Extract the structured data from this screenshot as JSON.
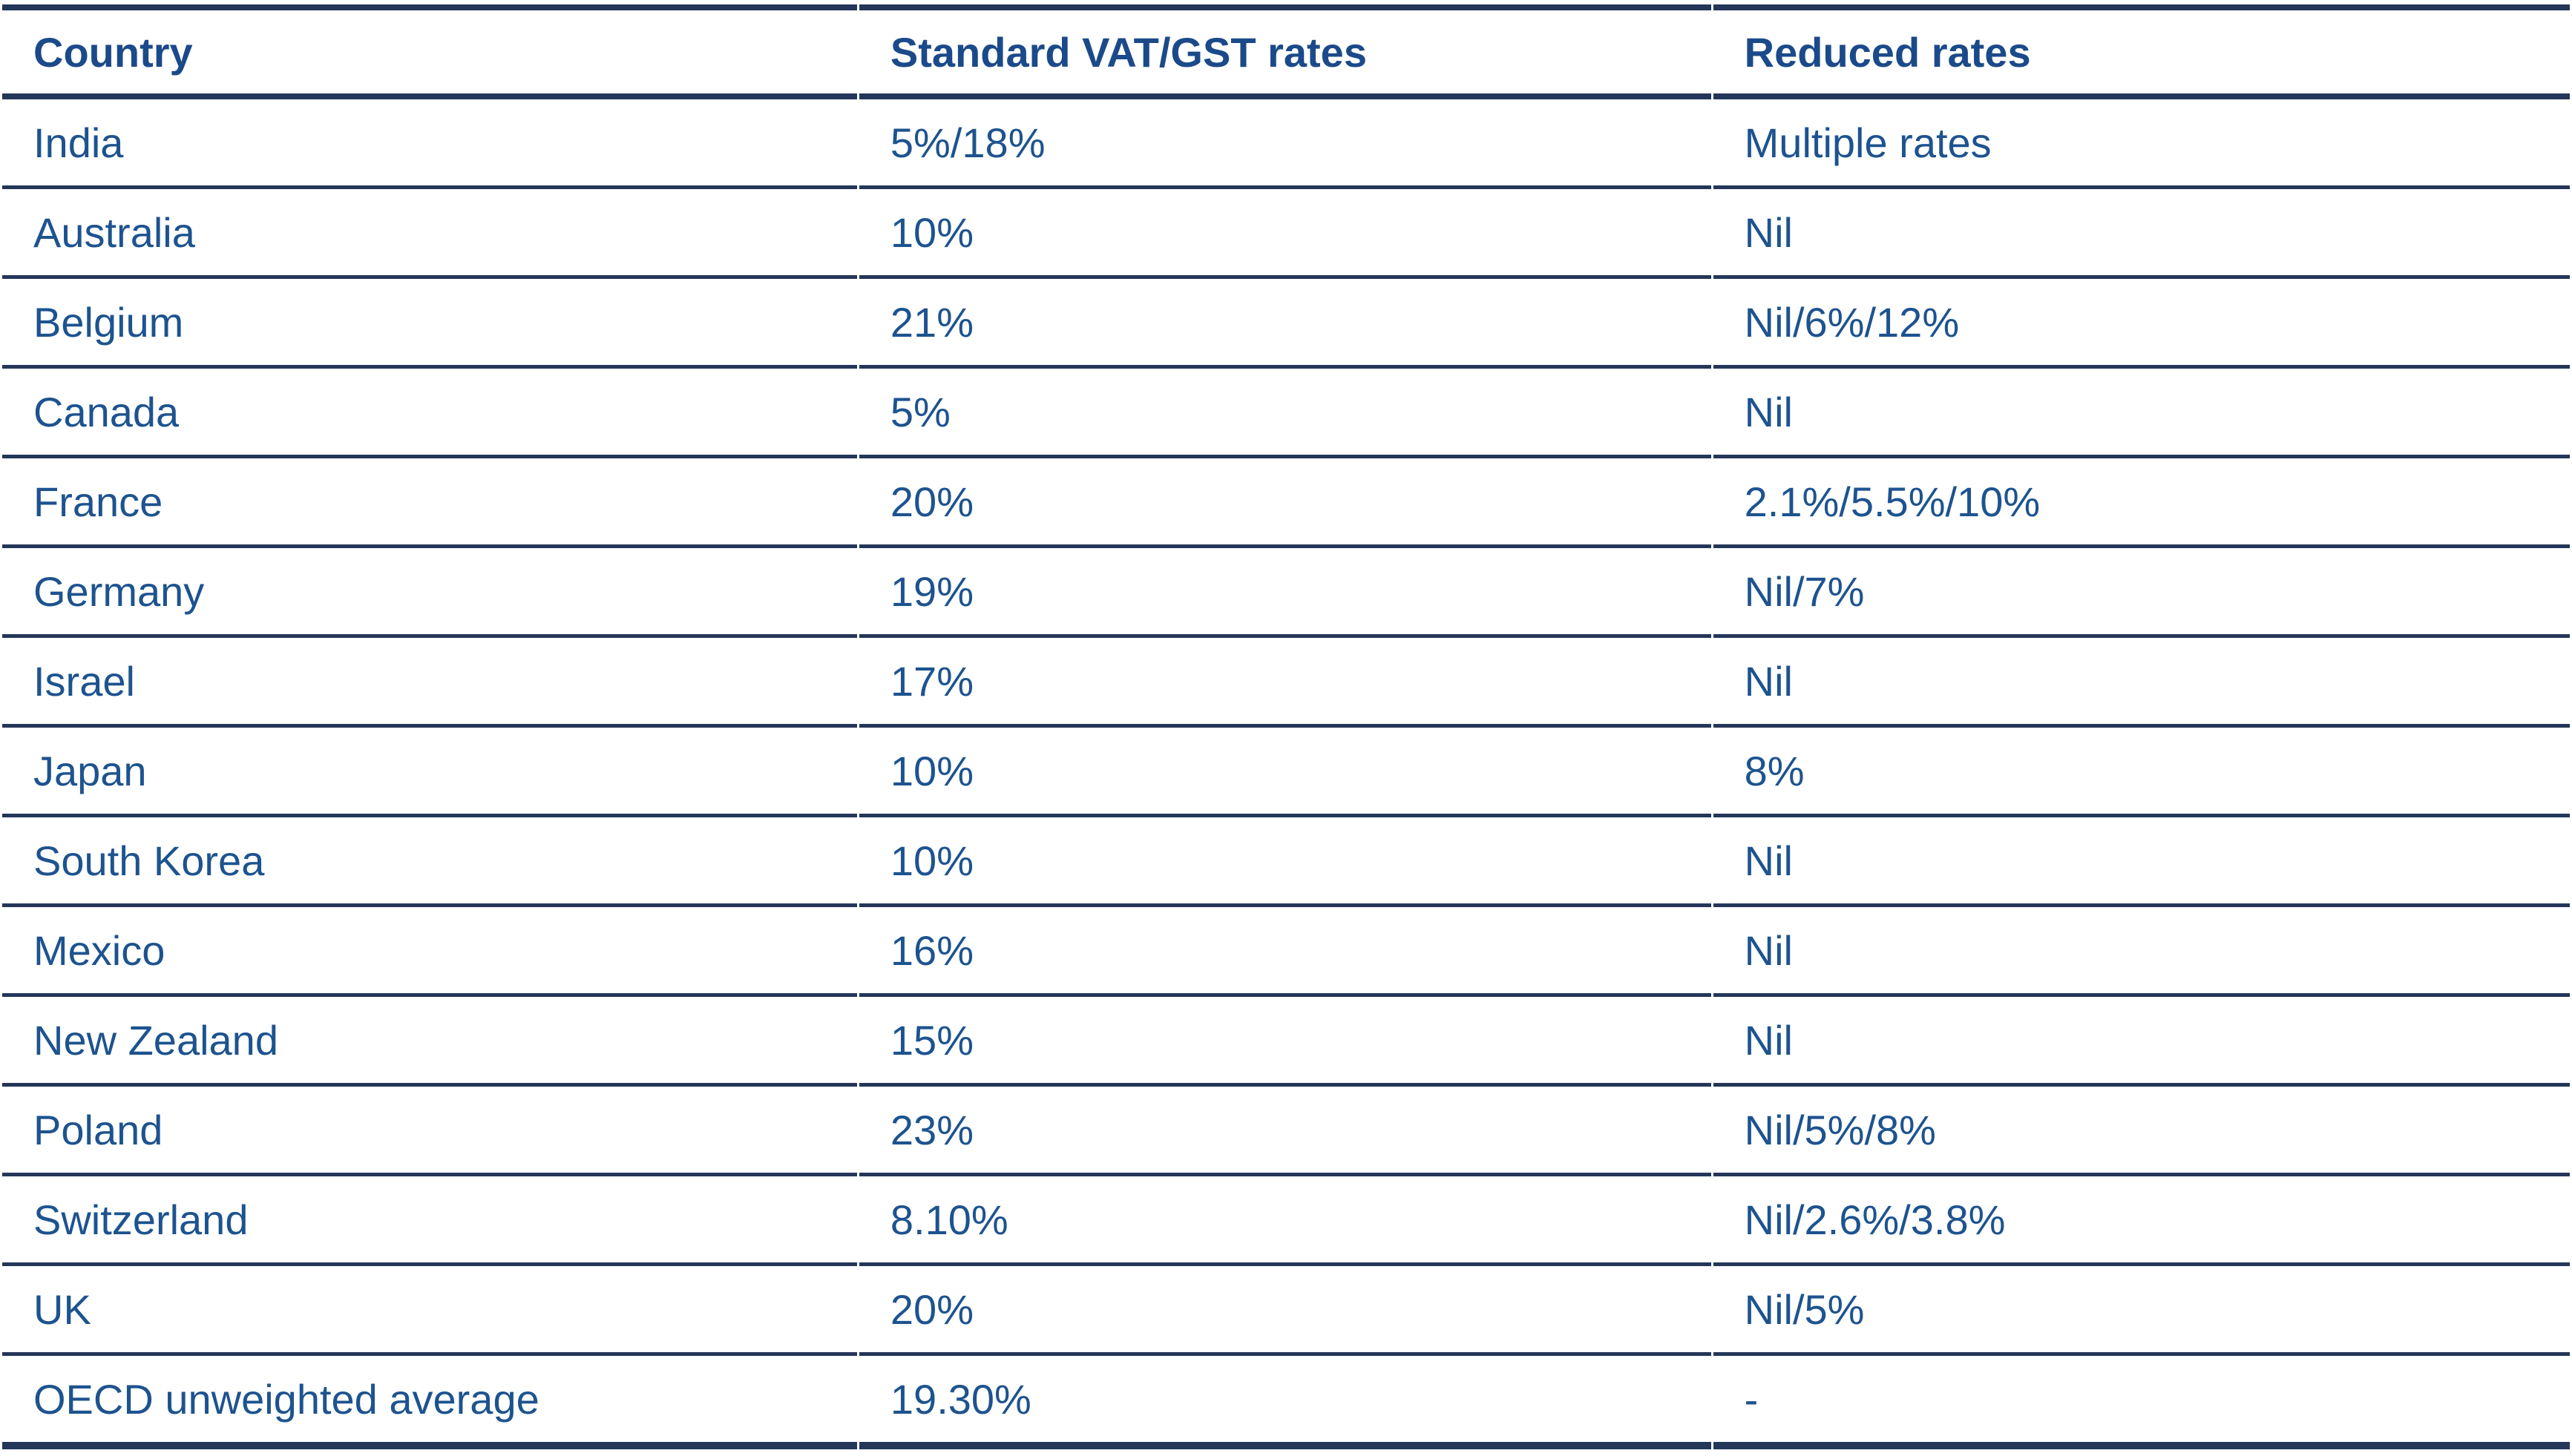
{
  "colors": {
    "page_background": "#ffffff",
    "header_text": "#1b4a8a",
    "body_text": "#1d538f",
    "border": "#243659"
  },
  "table": {
    "columns": [
      {
        "key": "country",
        "label": "Country"
      },
      {
        "key": "standard",
        "label": "Standard VAT/GST rates"
      },
      {
        "key": "reduced",
        "label": "Reduced rates"
      }
    ],
    "rows": [
      {
        "country": "India",
        "standard": "5%/18%",
        "reduced": "Multiple rates"
      },
      {
        "country": "Australia",
        "standard": "10%",
        "reduced": "Nil"
      },
      {
        "country": "Belgium",
        "standard": "21%",
        "reduced": "Nil/6%/12%"
      },
      {
        "country": "Canada",
        "standard": "5%",
        "reduced": "Nil"
      },
      {
        "country": "France",
        "standard": "20%",
        "reduced": "2.1%/5.5%/10%"
      },
      {
        "country": "Germany",
        "standard": "19%",
        "reduced": "Nil/7%"
      },
      {
        "country": "Israel",
        "standard": "17%",
        "reduced": "Nil"
      },
      {
        "country": "Japan",
        "standard": "10%",
        "reduced": "8%"
      },
      {
        "country": "South Korea",
        "standard": "10%",
        "reduced": "Nil"
      },
      {
        "country": "Mexico",
        "standard": "16%",
        "reduced": "Nil"
      },
      {
        "country": "New Zealand",
        "standard": "15%",
        "reduced": "Nil"
      },
      {
        "country": "Poland",
        "standard": "23%",
        "reduced": "Nil/5%/8%"
      },
      {
        "country": "Switzerland",
        "standard": "8.10%",
        "reduced": "Nil/2.6%/3.8%"
      },
      {
        "country": "UK",
        "standard": "20%",
        "reduced": "Nil/5%"
      },
      {
        "country": "OECD unweighted average",
        "standard": "19.30%",
        "reduced": "-"
      }
    ]
  }
}
